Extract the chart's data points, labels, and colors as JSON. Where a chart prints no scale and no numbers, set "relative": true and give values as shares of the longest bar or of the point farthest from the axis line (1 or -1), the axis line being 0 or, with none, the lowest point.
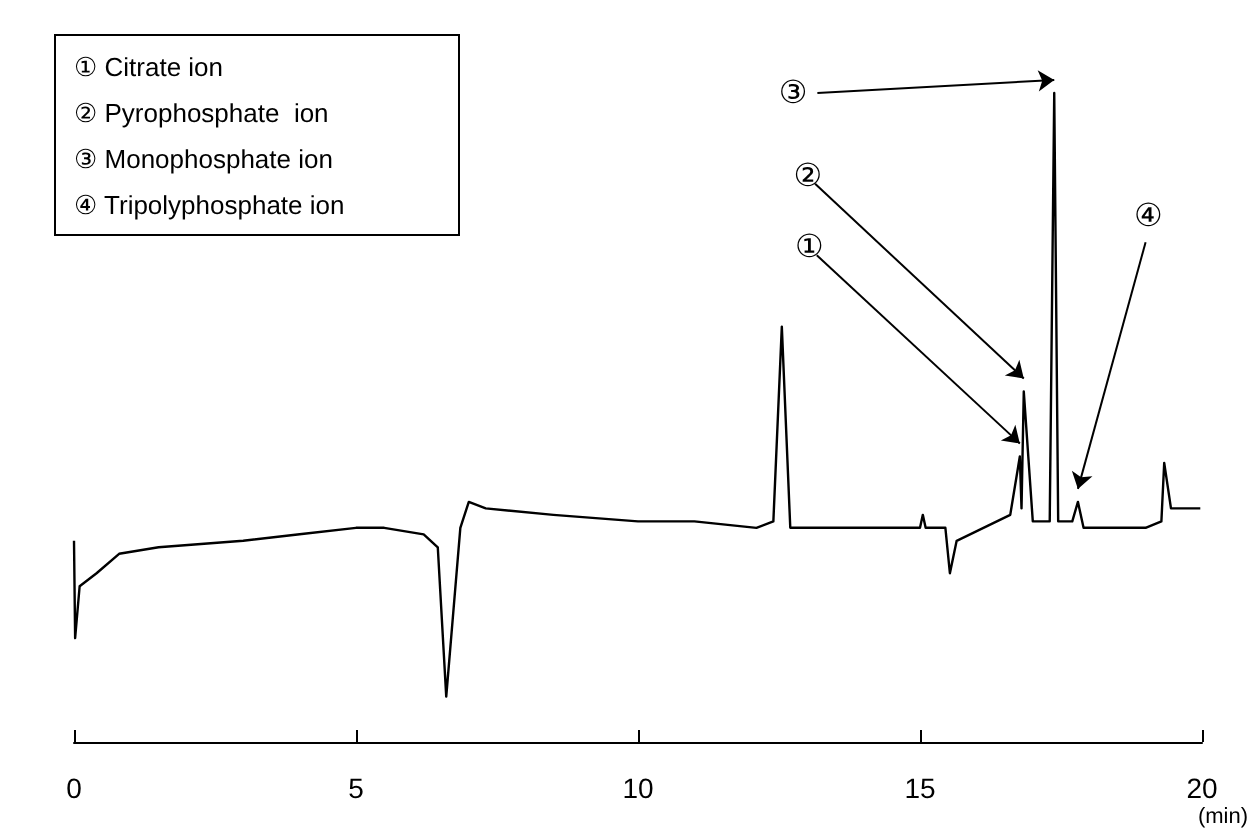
{
  "chart_data": {
    "type": "line",
    "relative": true,
    "xlabel": "(min)",
    "color": "#000000",
    "grid": false,
    "marker": "none",
    "line_style": "solid",
    "xlim": [
      0,
      20
    ],
    "xticks": [
      0,
      5,
      10,
      15,
      20
    ],
    "tick_labels": "x",
    "x": [
      0,
      0.02,
      0.1,
      0.4,
      0.8,
      1.5,
      3,
      4,
      5,
      5.5,
      6.2,
      6.45,
      6.6,
      6.85,
      7.0,
      7.3,
      8.5,
      10,
      11,
      12.1,
      12.4,
      12.55,
      12.7,
      13.5,
      15,
      15.05,
      15.1,
      15.45,
      15.53,
      15.65,
      16.6,
      16.77,
      16.8,
      16.84,
      17.0,
      17.3,
      17.38,
      17.45,
      17.7,
      17.8,
      17.9,
      19.0,
      19.28,
      19.33,
      19.45,
      19.97
    ],
    "values": [
      0.31,
      0.16,
      0.24,
      0.26,
      0.29,
      0.3,
      0.31,
      0.32,
      0.33,
      0.33,
      0.32,
      0.3,
      0.07,
      0.33,
      0.37,
      0.36,
      0.35,
      0.34,
      0.34,
      0.33,
      0.34,
      0.64,
      0.33,
      0.33,
      0.33,
      0.35,
      0.33,
      0.33,
      0.26,
      0.31,
      0.35,
      0.44,
      0.36,
      0.54,
      0.34,
      0.34,
      1,
      0.34,
      0.34,
      0.37,
      0.33,
      0.33,
      0.34,
      0.43,
      0.36,
      0.36
    ],
    "annotations": [
      "① Citrate ion",
      "② Pyrophosphate  ion",
      "③ Monophosphate ion",
      "④ Tripolyphosphate ion",
      {
        "text": "①",
        "x": 16.77,
        "y": 0.44
      },
      {
        "text": "②",
        "x": 16.84,
        "y": 0.54
      },
      {
        "text": "③",
        "x": 17.38,
        "y": 1
      },
      {
        "text": "④",
        "x": 17.8,
        "y": 0.37
      }
    ]
  }
}
